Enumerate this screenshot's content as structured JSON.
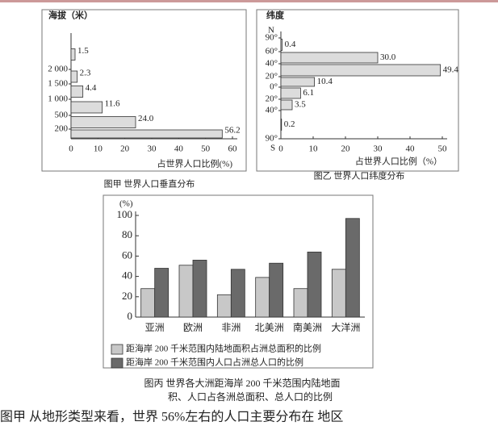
{
  "chart_data": [
    {
      "type": "hbar",
      "title": "图甲 世界人口垂直分布",
      "y_label": "海拔（米）",
      "x_label": "占世界人口比例(%)",
      "boundary_labels": [
        "200",
        "500",
        "1 000",
        "1 500",
        "2 000"
      ],
      "categories": [
        null,
        null,
        null,
        null,
        null,
        null
      ],
      "values": [
        56.2,
        24.0,
        11.6,
        4.4,
        2.3,
        1.5
      ],
      "value_labels": [
        "56.2",
        "24.0",
        "11.6",
        "4.4",
        "2.3",
        "1.5"
      ],
      "color": "#dcdcdc",
      "xlim": [
        0,
        60
      ],
      "xticks": [
        0,
        10,
        20,
        30,
        40,
        50,
        60
      ]
    },
    {
      "type": "hbar",
      "title": "图乙 世界人口纬度分布",
      "y_label": "纬度",
      "top_label": "N",
      "bottom_label": "S",
      "x_label": "占世界人口比例（%）",
      "boundary_labels": [
        "90°",
        "60°",
        "40°",
        "20°",
        "0°",
        "20°",
        "40°",
        "90°"
      ],
      "categories": [
        null,
        null,
        null,
        null,
        null,
        null,
        null
      ],
      "values": [
        0.4,
        30.0,
        49.4,
        10.4,
        6.1,
        3.5,
        0.2
      ],
      "value_labels": [
        "0.4",
        "30.0",
        "49.4",
        "10.4",
        "6.1",
        "3.5",
        "0.2"
      ],
      "color": "#dcdcdc",
      "xlim": [
        0,
        50
      ],
      "xticks": [
        0,
        10,
        20,
        30,
        40,
        50
      ]
    },
    {
      "type": "bar",
      "title_lines": [
        "图丙 世界各大洲距海岸 200 千米范围内陆地面",
        "积、人口占各洲总面积、总人口的比例"
      ],
      "y_label": "(%)",
      "categories": [
        "亚洲",
        "欧洲",
        "非洲",
        "北美洲",
        "南美洲",
        "大洋洲"
      ],
      "series": [
        {
          "name": "距海岸 200 千米范围内陆地面积占洲总面积的比例",
          "color": "#c8c8c8",
          "values": [
            28,
            51,
            22,
            39,
            28,
            47
          ]
        },
        {
          "name": "距海岸 200 千米范围内人口占洲总人口的比例",
          "color": "#6a6a6a",
          "values": [
            48,
            56,
            47,
            53,
            64,
            97
          ]
        }
      ],
      "ylim": [
        0,
        100
      ],
      "yticks": [
        0,
        20,
        40,
        60,
        80,
        100
      ]
    }
  ],
  "footer_text": "图甲  从地形类型来看，世界 56%左右的人口主要分布在        地区"
}
